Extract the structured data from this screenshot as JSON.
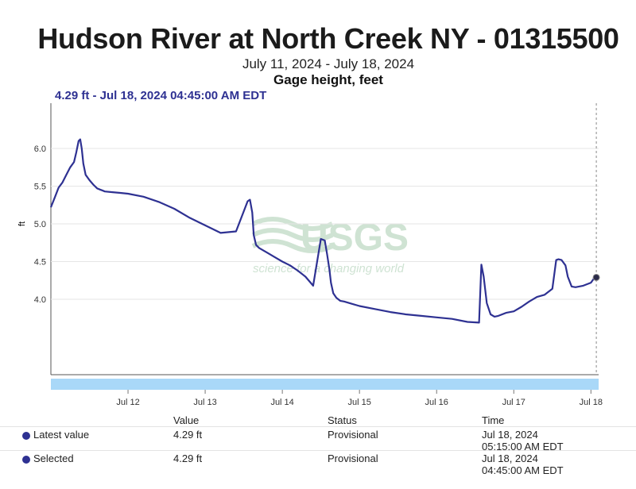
{
  "header": {
    "title": "Hudson River at North Creek NY - 01315500",
    "date_range": "July 11, 2024 - July 18, 2024",
    "measure": "Gage height, feet",
    "selected_readout": "4.29 ft - Jul 18, 2024 04:45:00 AM EDT"
  },
  "watermark": {
    "logo": "USGS",
    "tagline": "science for a changing world"
  },
  "table": {
    "headers": {
      "value": "Value",
      "status": "Status",
      "time": "Time"
    },
    "rows": [
      {
        "label": "Latest value",
        "value": "4.29 ft",
        "status": "Provisional",
        "time_date": "Jul 18, 2024",
        "time_clock": "05:15:00 AM EDT"
      },
      {
        "label": "Selected",
        "value": "4.29 ft",
        "status": "Provisional",
        "time_date": "Jul 18, 2024",
        "time_clock": "04:45:00 AM EDT"
      }
    ]
  },
  "colors": {
    "series": "#2e3192",
    "brush": "#a9d8f8",
    "watermark": "#cfe3d3"
  },
  "chart_data": {
    "type": "line",
    "title": "Hudson River at North Creek NY - 01315500",
    "ylabel": "ft",
    "xlabel": "",
    "ylim": [
      3.0,
      6.6
    ],
    "xlim": [
      11.0,
      18.1
    ],
    "yticks": [
      4.0,
      4.5,
      5.0,
      5.5,
      6.0
    ],
    "ytick_labels": [
      "4.0",
      "4.5",
      "5.0",
      "5.5",
      "6.0"
    ],
    "xticks": [
      12,
      13,
      14,
      15,
      16,
      17,
      18
    ],
    "xtick_labels": [
      "Jul 12",
      "Jul 13",
      "Jul 14",
      "Jul 15",
      "Jul 16",
      "Jul 17",
      "Jul 18"
    ],
    "grid": true,
    "series": [
      {
        "name": "Gage height",
        "x": [
          11.0,
          11.05,
          11.1,
          11.15,
          11.2,
          11.25,
          11.3,
          11.33,
          11.36,
          11.38,
          11.4,
          11.42,
          11.45,
          11.5,
          11.55,
          11.6,
          11.7,
          11.8,
          11.9,
          12.0,
          12.2,
          12.4,
          12.6,
          12.8,
          13.0,
          13.2,
          13.4,
          13.55,
          13.58,
          13.61,
          13.63,
          13.66,
          13.7,
          13.8,
          13.9,
          14.0,
          14.1,
          14.2,
          14.3,
          14.4,
          14.5,
          14.55,
          14.58,
          14.61,
          14.63,
          14.66,
          14.7,
          14.75,
          14.8,
          14.9,
          15.0,
          15.2,
          15.4,
          15.6,
          15.8,
          16.0,
          16.2,
          16.4,
          16.55,
          16.58,
          16.61,
          16.65,
          16.7,
          16.75,
          16.8,
          16.9,
          17.0,
          17.1,
          17.2,
          17.3,
          17.4,
          17.5,
          17.55,
          17.58,
          17.62,
          17.67,
          17.7,
          17.75,
          17.8,
          17.9,
          18.0,
          18.05,
          18.1
        ],
        "values": [
          5.22,
          5.35,
          5.48,
          5.55,
          5.65,
          5.75,
          5.82,
          5.95,
          6.1,
          6.12,
          6.0,
          5.8,
          5.65,
          5.58,
          5.52,
          5.47,
          5.43,
          5.42,
          5.41,
          5.4,
          5.36,
          5.29,
          5.2,
          5.08,
          4.98,
          4.88,
          4.9,
          5.3,
          5.32,
          5.15,
          4.85,
          4.72,
          4.68,
          4.62,
          4.56,
          4.5,
          4.45,
          4.38,
          4.3,
          4.18,
          4.8,
          4.78,
          4.6,
          4.4,
          4.22,
          4.08,
          4.02,
          3.98,
          3.97,
          3.94,
          3.91,
          3.87,
          3.83,
          3.8,
          3.78,
          3.76,
          3.74,
          3.7,
          3.69,
          4.46,
          4.3,
          3.95,
          3.8,
          3.77,
          3.78,
          3.82,
          3.84,
          3.9,
          3.97,
          4.03,
          4.06,
          4.14,
          4.52,
          4.53,
          4.52,
          4.45,
          4.3,
          4.17,
          4.16,
          4.18,
          4.22,
          4.29,
          4.29
        ]
      }
    ],
    "selected_point": {
      "x": 18.07,
      "value": 4.29
    }
  }
}
